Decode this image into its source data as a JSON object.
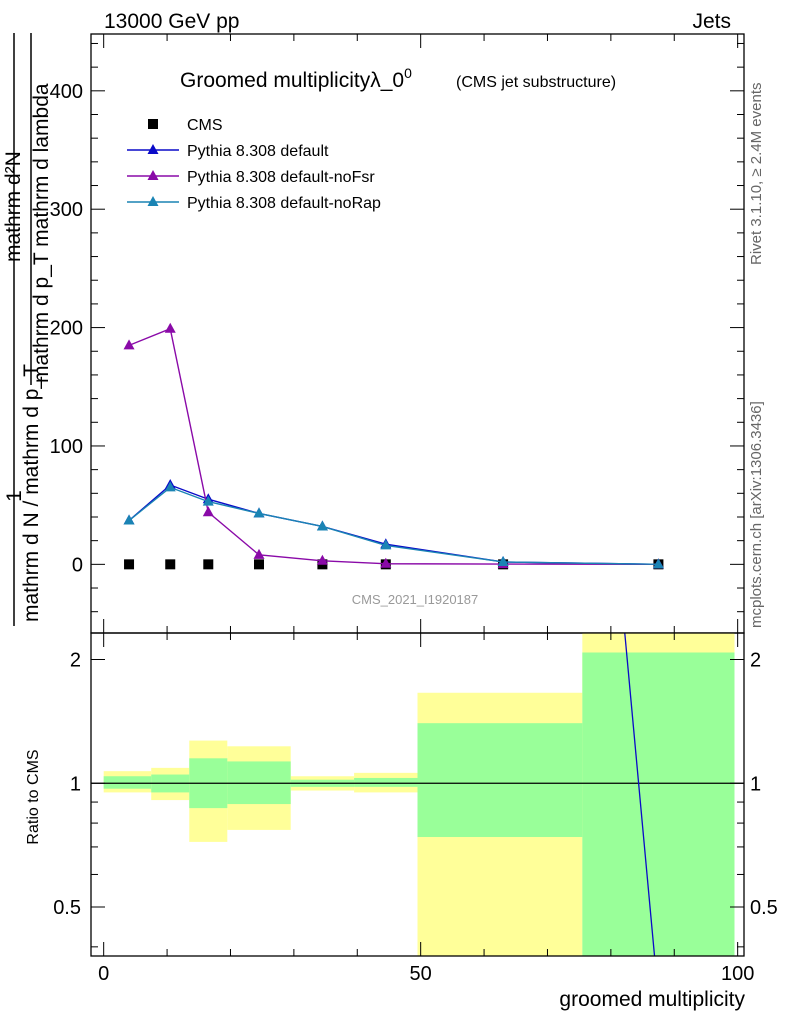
{
  "header": {
    "energy_label": "13000 GeV pp",
    "category_label": "Jets"
  },
  "side_labels": {
    "rivet": "Rivet 3.1.10, ≥ 2.4M events",
    "mcplots": "mcplots.cern.ch [arXiv:1306.3436]"
  },
  "watermark": "CMS_2021_I1920187",
  "chart_data": [
    {
      "type": "scatter",
      "title": "Groomed multiplicityλ_0",
      "title_superscript": "0",
      "subtitle": "(CMS jet substructure)",
      "xlabel": "groomed multiplicity",
      "ylabel_parts": {
        "fraction_numerator": "1",
        "fraction_denominator": "mathrm d N / mathrm d p_T",
        "derivative_numerator": "mathrm d²N",
        "derivative_denominator": "mathrm d p_T mathrm d lambda"
      },
      "xlim": [
        -2,
        101
      ],
      "ylim": [
        -58,
        448
      ],
      "yticks": [
        0,
        100,
        200,
        300,
        400
      ],
      "tick_labels": [
        "0",
        "100",
        "200",
        "300",
        "400"
      ],
      "legend_position": "top-left",
      "series": [
        {
          "name": "CMS",
          "color": "#000000",
          "marker": "square",
          "x": [
            4,
            10.5,
            16.5,
            24.5,
            34.5,
            44.5,
            63,
            87.5
          ],
          "y": [
            0,
            0,
            0,
            0,
            0,
            0,
            0,
            0
          ]
        },
        {
          "name": "Pythia 8.308 default",
          "color": "#0a0ac8",
          "marker": "triangle",
          "x": [
            4,
            10.5,
            16.5,
            24.5,
            34.5,
            44.5,
            63,
            87.5
          ],
          "y": [
            37,
            67,
            55,
            43,
            32,
            17,
            2,
            0
          ]
        },
        {
          "name": "Pythia 8.308 default-noFsr",
          "color": "#8a0aa8",
          "marker": "triangle",
          "x": [
            4,
            10.5,
            16.5,
            24.5,
            34.5,
            44.5,
            63,
            87.5
          ],
          "y": [
            185,
            199,
            44,
            8,
            3,
            0.5,
            0.2,
            0
          ]
        },
        {
          "name": "Pythia 8.308 default-noRap",
          "color": "#1a84b4",
          "marker": "triangle",
          "x": [
            4,
            10.5,
            16.5,
            24.5,
            34.5,
            44.5,
            63,
            87.5
          ],
          "y": [
            37,
            65,
            53,
            43,
            32,
            16,
            2,
            0
          ]
        }
      ]
    },
    {
      "type": "area",
      "ylabel": "Ratio to CMS",
      "xlabel": "groomed multiplicity",
      "xlim": [
        -2,
        101
      ],
      "ylim": [
        0.38,
        2.32
      ],
      "yscale": "log",
      "yticks": [
        0.5,
        1,
        2
      ],
      "tick_labels": [
        "0.5",
        "1",
        "2"
      ],
      "xticks": [
        0,
        50,
        100
      ],
      "xtick_labels": [
        "0",
        "50",
        "100"
      ],
      "bins": [
        {
          "x0": 0,
          "x1": 7.5,
          "inner": [
            0.97,
            1.04
          ],
          "outer": [
            0.95,
            1.07
          ]
        },
        {
          "x0": 7.5,
          "x1": 13.5,
          "inner": [
            0.95,
            1.05
          ],
          "outer": [
            0.91,
            1.09
          ]
        },
        {
          "x0": 13.5,
          "x1": 19.5,
          "inner": [
            0.87,
            1.15
          ],
          "outer": [
            0.72,
            1.27
          ]
        },
        {
          "x0": 19.5,
          "x1": 29.5,
          "inner": [
            0.89,
            1.13
          ],
          "outer": [
            0.77,
            1.23
          ]
        },
        {
          "x0": 29.5,
          "x1": 39.5,
          "inner": [
            0.98,
            1.02
          ],
          "outer": [
            0.96,
            1.04
          ]
        },
        {
          "x0": 39.5,
          "x1": 49.5,
          "inner": [
            0.98,
            1.03
          ],
          "outer": [
            0.95,
            1.06
          ]
        },
        {
          "x0": 49.5,
          "x1": 75.5,
          "inner": [
            0.74,
            1.4
          ],
          "outer": [
            0.36,
            1.66
          ]
        },
        {
          "x0": 75.5,
          "x1": 99.5,
          "inner": [
            0.36,
            2.08
          ],
          "outer": [
            0.36,
            2.4
          ]
        }
      ],
      "series": [
        {
          "name": "Pythia 8.308 default",
          "color": "#0a0ac8",
          "x": [
            82,
            87.5
          ],
          "y": [
            2.5,
            0.3
          ]
        }
      ]
    }
  ]
}
